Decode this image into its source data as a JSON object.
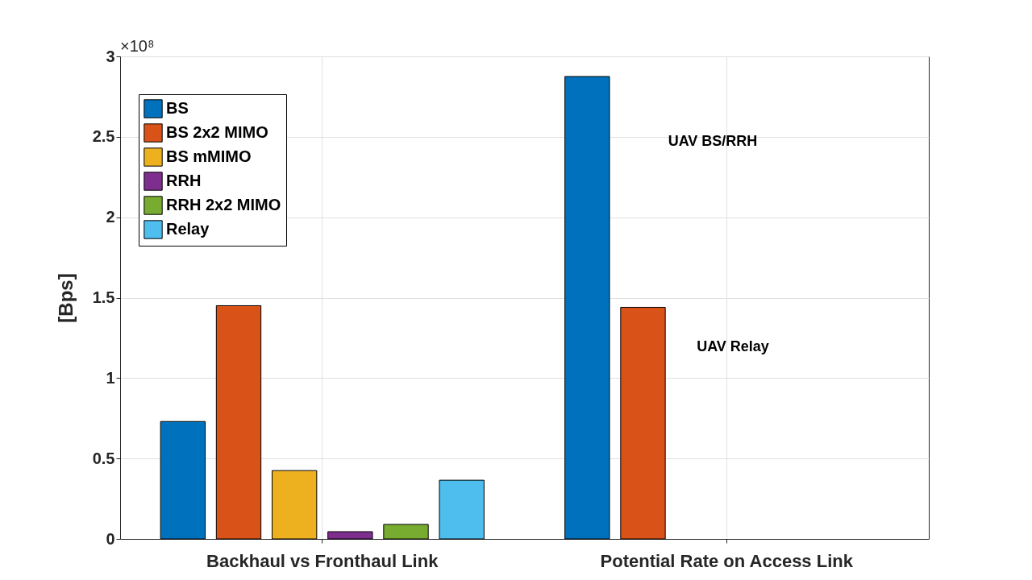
{
  "chart_data": {
    "type": "bar",
    "ylabel": "[Bps]",
    "categories": [
      "Backhaul vs Fronthaul Link",
      "Potential Rate on Access Link"
    ],
    "series": [
      {
        "name": "BS",
        "color": "#0072bd",
        "values": [
          0.73,
          2.875
        ]
      },
      {
        "name": "BS 2x2 MIMO",
        "color": "#d95319",
        "values": [
          1.45,
          1.44
        ]
      },
      {
        "name": "BS mMIMO",
        "color": "#edb120",
        "values": [
          0.425,
          null
        ]
      },
      {
        "name": "RRH",
        "color": "#7e2f8e",
        "values": [
          0.045,
          null
        ]
      },
      {
        "name": "RRH 2x2 MIMO",
        "color": "#77ac30",
        "values": [
          0.09,
          null
        ]
      },
      {
        "name": "Relay",
        "color": "#4dbeee",
        "values": [
          0.365,
          null
        ]
      }
    ],
    "ylim": [
      0,
      3
    ],
    "yticks": [
      0,
      0.5,
      1,
      1.5,
      2,
      2.5,
      3
    ],
    "grid": true,
    "legend": "top left",
    "annotations": [
      "×10⁸",
      "UAV BS/RRH",
      "UAV Relay"
    ]
  }
}
